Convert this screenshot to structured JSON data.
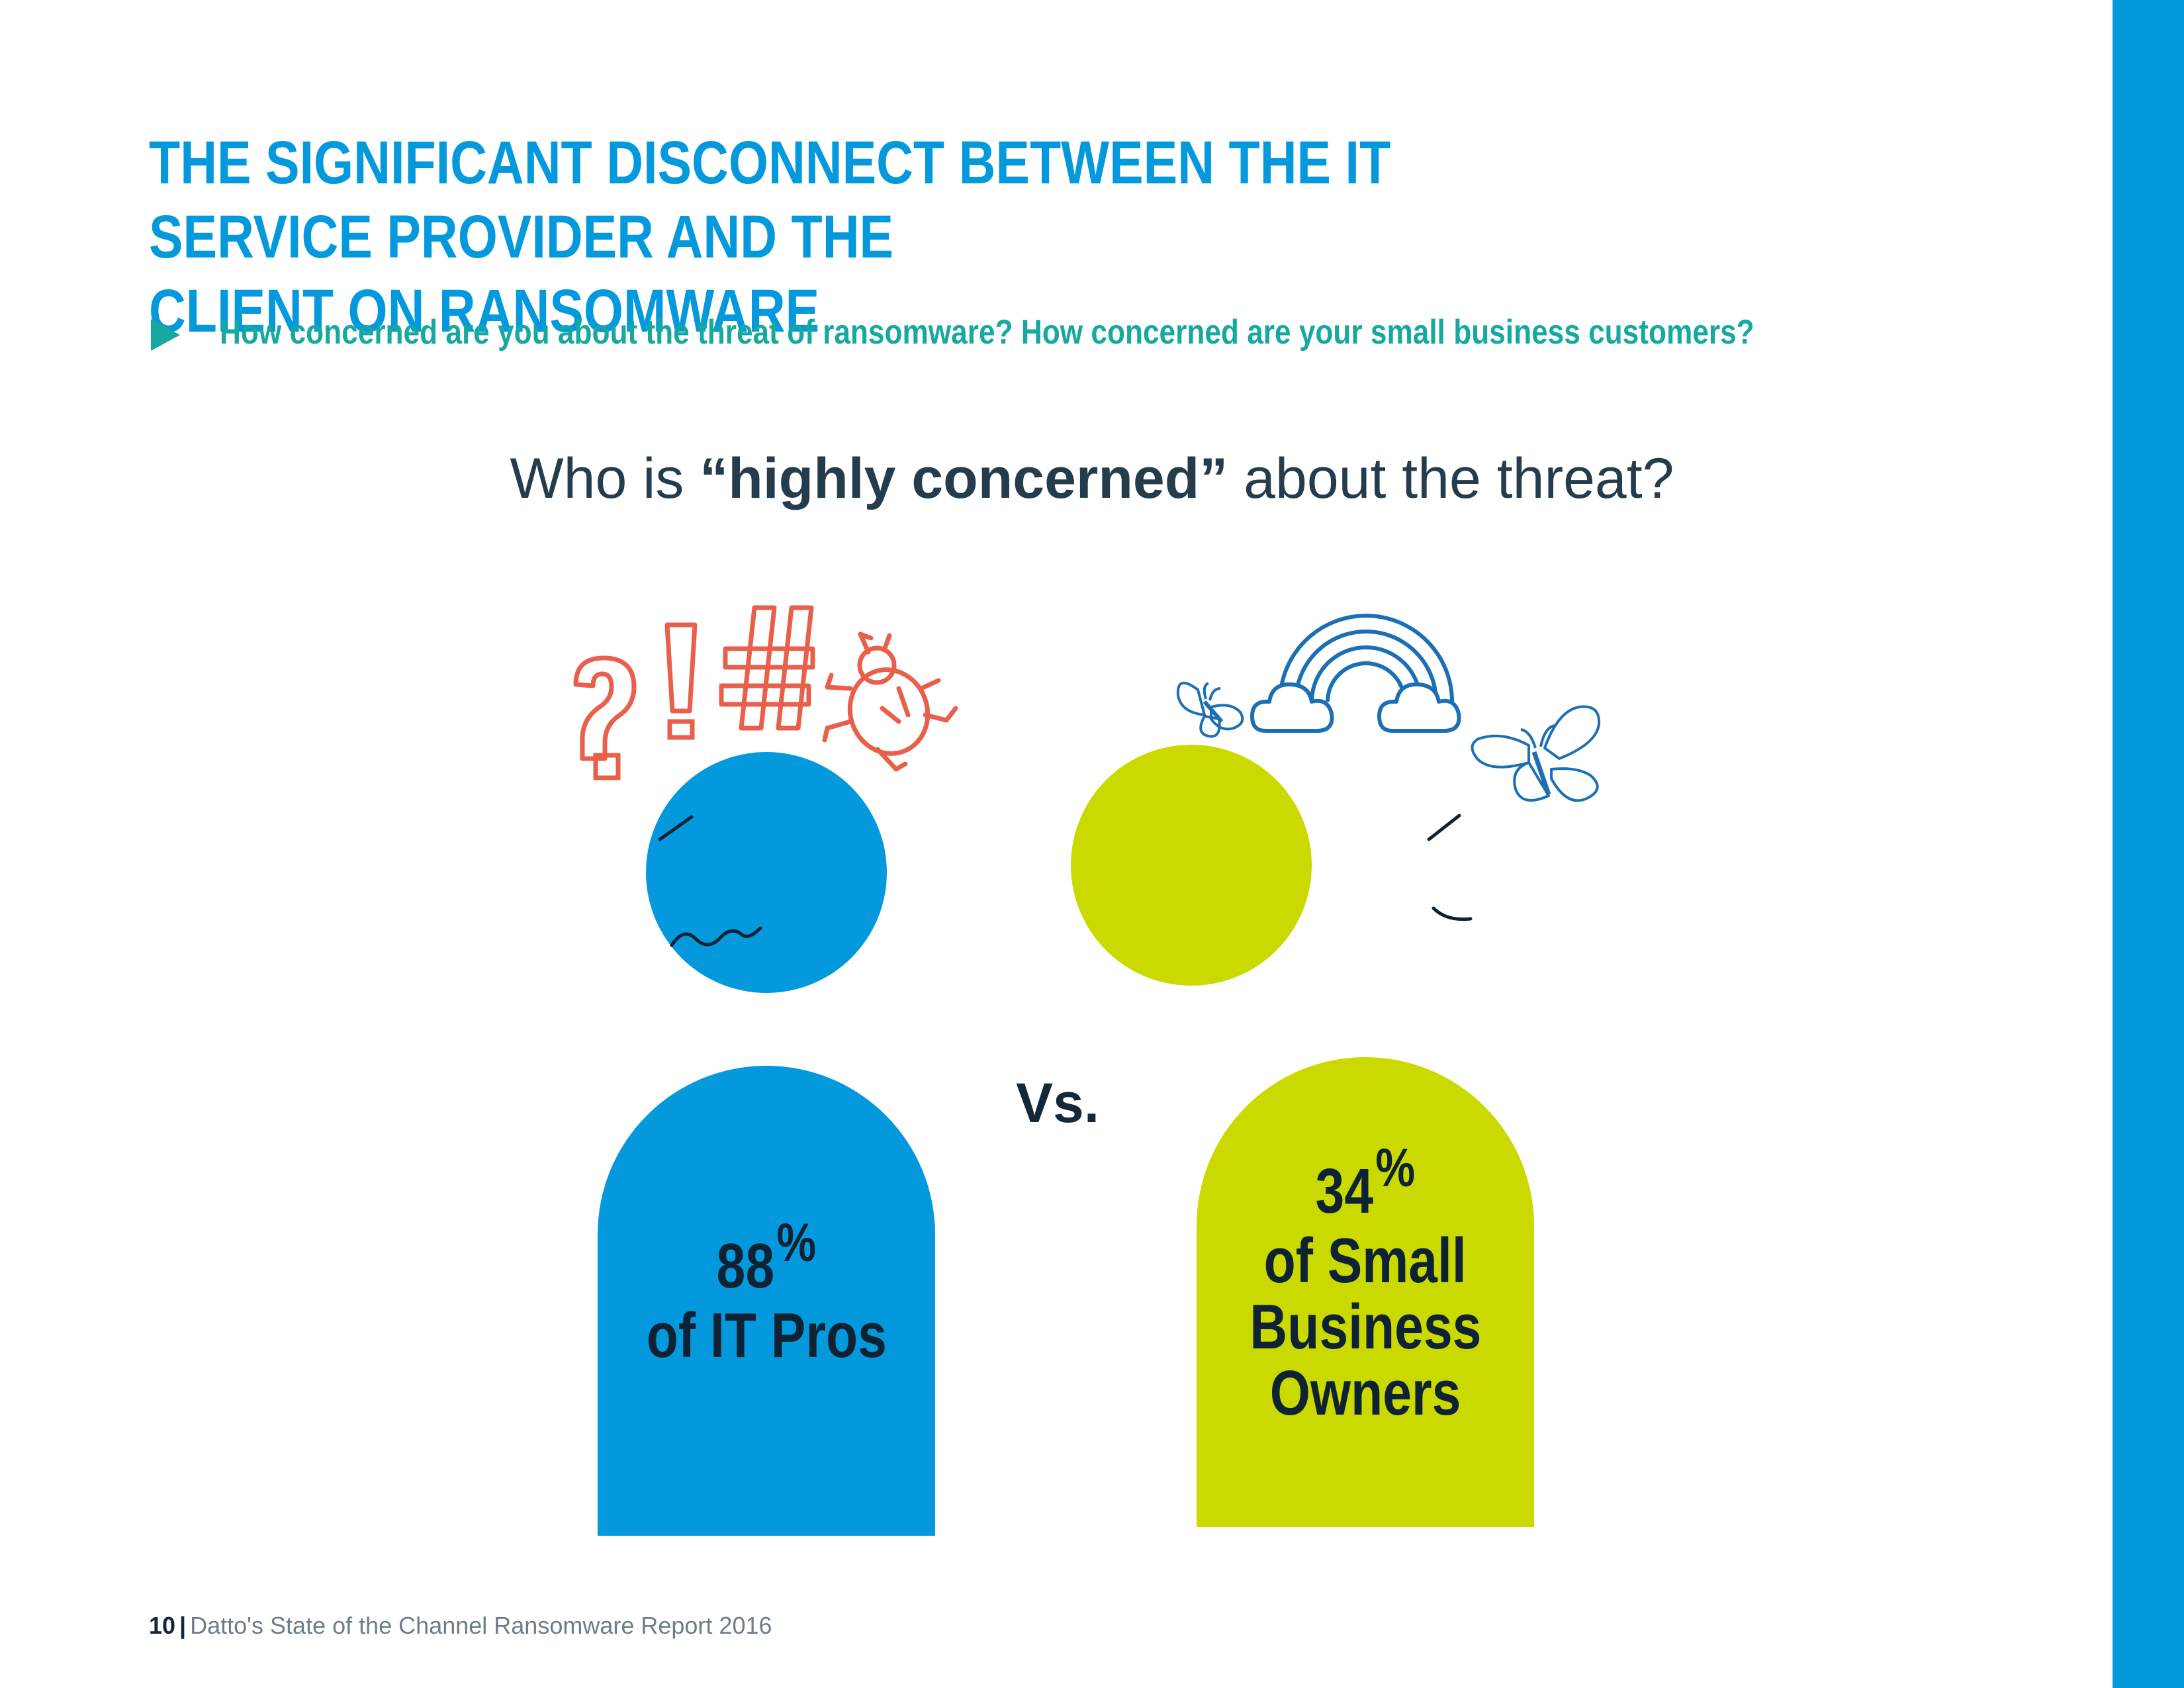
{
  "header": {
    "title_line1": "THE SIGNIFICANT DISCONNECT BETWEEN THE IT SERVICE PROVIDER AND THE",
    "title_line2": "CLIENT ON RANSOMWARE",
    "question": "How concerned are you about the threat of ransomware? How concerned are your small business customers?"
  },
  "subheading": {
    "prefix": "Who is ",
    "highlight": "“highly concerned”",
    "suffix": " about the threat?"
  },
  "comparison": {
    "vs_label": "Vs.",
    "left": {
      "value": "88",
      "unit": "%",
      "label": "of IT Pros"
    },
    "right": {
      "value": "34",
      "unit": "%",
      "label_line1": "of Small",
      "label_line2": "Business",
      "label_line3": "Owners"
    }
  },
  "footer": {
    "page_number": "10",
    "separator": "|",
    "report_title": "Datto's State of the Channel Ransomware Report 2016"
  },
  "colors": {
    "brand_blue": "#0399dc",
    "teal": "#17a89f",
    "lime": "#cada00",
    "dark_navy": "#14283a",
    "symbol_orange": "#e8604c",
    "line_blue": "#1b6fb5"
  },
  "icons": [
    "play-icon",
    "question-mark-icon",
    "exclamation-mark-icon",
    "hash-icon",
    "bug-icon",
    "rainbow-icon",
    "cloud-icon",
    "butterfly-icon"
  ]
}
